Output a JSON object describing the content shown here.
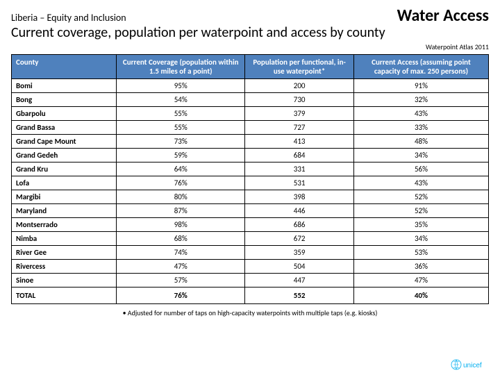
{
  "header": {
    "breadcrumb": "Liberia – Equity and Inclusion",
    "title": "Water Access",
    "subtitle": "Current coverage, population per waterpoint and access by county",
    "source": "Waterpoint Atlas 2011"
  },
  "table": {
    "columns": [
      "County",
      "Current Coverage (population within 1.5 miles of a point)",
      "Population per functional, in-use waterpoint*",
      "Current Access (assuming point capacity of max. 250 persons)"
    ],
    "rows": [
      {
        "county": "Bomi",
        "coverage": "95%",
        "pop": "200",
        "access": "91%"
      },
      {
        "county": "Bong",
        "coverage": "54%",
        "pop": "730",
        "access": "32%"
      },
      {
        "county": "Gbarpolu",
        "coverage": "55%",
        "pop": "379",
        "access": "43%"
      },
      {
        "county": "Grand Bassa",
        "coverage": "55%",
        "pop": "727",
        "access": "33%"
      },
      {
        "county": "Grand Cape Mount",
        "coverage": "73%",
        "pop": "413",
        "access": "48%"
      },
      {
        "county": "Grand Gedeh",
        "coverage": "59%",
        "pop": "684",
        "access": "34%"
      },
      {
        "county": "Grand Kru",
        "coverage": "64%",
        "pop": "331",
        "access": "56%"
      },
      {
        "county": "Lofa",
        "coverage": "76%",
        "pop": "531",
        "access": "43%"
      },
      {
        "county": "Margibi",
        "coverage": "80%",
        "pop": "398",
        "access": "52%"
      },
      {
        "county": "Maryland",
        "coverage": "87%",
        "pop": "446",
        "access": "52%"
      },
      {
        "county": "Montserrado",
        "coverage": "98%",
        "pop": "686",
        "access": "35%"
      },
      {
        "county": "Nimba",
        "coverage": "68%",
        "pop": "672",
        "access": "34%"
      },
      {
        "county": "River Gee",
        "coverage": "74%",
        "pop": "359",
        "access": "53%"
      },
      {
        "county": "Rivercess",
        "coverage": "47%",
        "pop": "504",
        "access": "36%"
      },
      {
        "county": "Sinoe",
        "coverage": "57%",
        "pop": "447",
        "access": "47%"
      }
    ],
    "total": {
      "county": "TOTAL",
      "coverage": "76%",
      "pop": "552",
      "access": "40%"
    },
    "header_bg": "#4f81bd",
    "header_fg": "#ffffff",
    "border_color": "#000000"
  },
  "footnote": "• Adjusted for number of taps on high-capacity waterpoints with multiple taps (e.g. kiosks)",
  "logo": {
    "name": "unicef",
    "color": "#00aeef"
  }
}
